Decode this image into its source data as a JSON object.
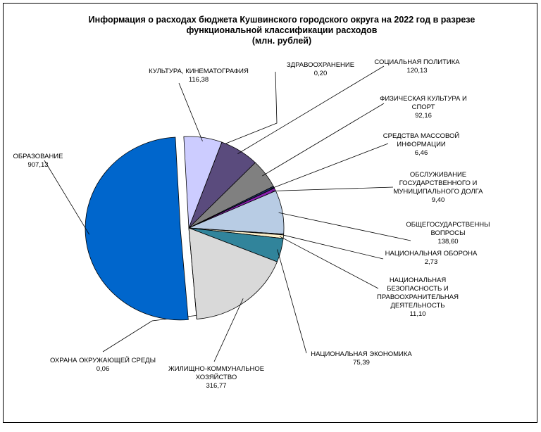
{
  "chart_data": {
    "type": "pie",
    "title": [
      "Информация о расходах бюджета Кушвинского городского округа на 2022 год в разрезе",
      "функциональной классификации расходов",
      "(млн. рублей)"
    ],
    "slices": [
      {
        "name": "ЗДРАВООХРАНЕНИЕ",
        "value": 0.2,
        "label": "0,20",
        "color": "#ffffff"
      },
      {
        "name": "СОЦИАЛЬНАЯ ПОЛИТИКА",
        "value": 120.13,
        "label": "120,13",
        "color": "#5a4b7d"
      },
      {
        "name": "ФИЗИЧЕСКАЯ КУЛЬТУРА И СПОРТ",
        "value": 92.16,
        "label": "92,16",
        "color": "#808080"
      },
      {
        "name": "СРЕДСТВА МАССОВОЙ ИНФОРМАЦИИ",
        "value": 6.46,
        "label": "6,46",
        "color": "#1c2c5a"
      },
      {
        "name": "ОБСЛУЖИВАНИЕ ГОСУДАРСТВЕННОГО И МУНИЦИПАЛЬНОГО ДОЛГА",
        "value": 9.4,
        "label": "9,40",
        "color": "#8a1fb0"
      },
      {
        "name": "ОБЩЕГОСУДАРСТВЕННЫ ВОПРОСЫ",
        "value": 138.6,
        "label": "138,60",
        "color": "#b8cce4"
      },
      {
        "name": "НАЦИОНАЛЬНАЯ ОБОРОНА",
        "value": 2.73,
        "label": "2,73",
        "color": "#ffffff"
      },
      {
        "name": "НАЦИОНАЛЬНАЯ БЕЗОПАСНОСТЬ И ПРАВООХРАНИТЕЛЬНАЯ ДЕЯТЕЛЬНОСТЬ",
        "value": 11.1,
        "label": "11,10",
        "color": "#fff2cc"
      },
      {
        "name": "НАЦИОНАЛЬНАЯ ЭКОНОМИКА",
        "value": 75.39,
        "label": "75,39",
        "color": "#31849b"
      },
      {
        "name": "ЖИЛИЩНО-КОММУНАЛЬНОЕ ХОЗЯЙСТВО",
        "value": 316.77,
        "label": "316,77",
        "color": "#d9d9d9"
      },
      {
        "name": "ОХРАНА ОКРУЖАЮЩЕЙ СРЕДЫ",
        "value": 0.06,
        "label": "0,06",
        "color": "#ffffff"
      },
      {
        "name": "ОБРАЗОВАНИЕ",
        "value": 907.13,
        "label": "907,13",
        "color": "#0066cc"
      },
      {
        "name": "КУЛЬТУРА, КИНЕМАТОГРАФИЯ",
        "value": 116.38,
        "label": "116,38",
        "color": "#ccccff"
      }
    ],
    "label_lines": [
      [
        "ЗДРАВООХРАНЕНИЕ"
      ],
      [
        "СОЦИАЛЬНАЯ ПОЛИТИКА"
      ],
      [
        "ФИЗИЧЕСКАЯ КУЛЬТУРА И",
        "СПОРТ"
      ],
      [
        "СРЕДСТВА МАССОВОЙ",
        "ИНФОРМАЦИИ"
      ],
      [
        "ОБСЛУЖИВАНИЕ",
        "ГОСУДАРСТВЕННОГО И",
        "МУНИЦИПАЛЬНОГО ДОЛГА"
      ],
      [
        "ОБЩЕГОСУДАРСТВЕННЫ",
        "ВОПРОСЫ"
      ],
      [
        "НАЦИОНАЛЬНАЯ ОБОРОНА"
      ],
      [
        "НАЦИОНАЛЬНАЯ",
        "БЕЗОПАСНОСТЬ И",
        "ПРАВООХРАНИТЕЛЬНАЯ",
        "ДЕЯТЕЛЬНОСТЬ"
      ],
      [
        "НАЦИОНАЛЬНАЯ ЭКОНОМИКА"
      ],
      [
        "ЖИЛИЩНО-КОММУНАЛЬНОЕ",
        "ХОЗЯЙСТВО"
      ],
      [
        "ОХРАНА ОКРУЖАЮЩЕЙ СРЕДЫ"
      ],
      [
        "ОБРАЗОВАНИЕ"
      ],
      [
        "КУЛЬТУРА, КИНЕМАТОГРАФИЯ"
      ]
    ],
    "legend": "none",
    "exploded": true
  }
}
